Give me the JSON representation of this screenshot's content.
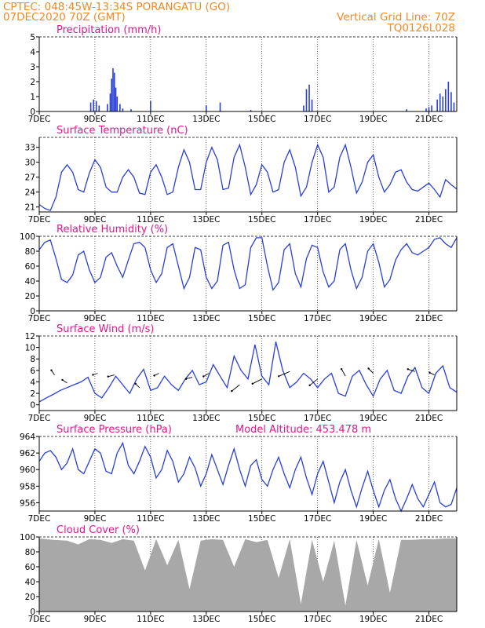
{
  "header": {
    "line1": "CPTEC:   048:45W-13:34S   PORANGATU (GO)",
    "line2": "07DEC2020 70Z (GMT)",
    "grid_note": "Vertical Grid Line: 70Z",
    "code": "TQ0126L028"
  },
  "colors": {
    "header": "#f08a24",
    "title": "#e0188c",
    "line": "#2a3fd6",
    "bar": "#2a3fd6",
    "cloud": "#a8a8a8"
  },
  "x_ticks": [
    "7DEC",
    "9DEC",
    "11DEC",
    "13DEC",
    "15DEC",
    "17DEC",
    "19DEC",
    "21DEC"
  ],
  "x_range_days": [
    0,
    15
  ],
  "panels": [
    {
      "id": "precip",
      "title": "Precipitation  (mm/h)",
      "extra": "",
      "type": "bar",
      "ylim": [
        0,
        5
      ],
      "yticks": [
        "0",
        "1",
        "2",
        "3",
        "4",
        "5"
      ]
    },
    {
      "id": "temp",
      "title": "Surface Temperature (nC)",
      "extra": "",
      "type": "line",
      "ylim": [
        20,
        35
      ],
      "yticks": [
        "21",
        "24",
        "27",
        "30",
        "33"
      ]
    },
    {
      "id": "rh",
      "title": "Relative Humidity  (%)",
      "extra": "",
      "type": "line",
      "ylim": [
        0,
        100
      ],
      "yticks": [
        "0",
        "20",
        "40",
        "60",
        "80",
        "100"
      ]
    },
    {
      "id": "wind",
      "title": "Surface Wind  (m/s)",
      "extra": "",
      "type": "line",
      "ylim": [
        -1,
        12
      ],
      "yticks": [
        "0",
        "2",
        "4",
        "6",
        "8",
        "10",
        "12"
      ]
    },
    {
      "id": "pres",
      "title": "Surface Pressure (hPa)",
      "extra": "Model Altitude: 453.478  m",
      "type": "line",
      "ylim": [
        955,
        964
      ],
      "yticks": [
        "956",
        "958",
        "960",
        "962",
        "964"
      ]
    },
    {
      "id": "cloud",
      "title": "Cloud Cover (%)",
      "extra": "",
      "type": "area",
      "ylim": [
        0,
        100
      ],
      "yticks": [
        "0",
        "20",
        "40",
        "60",
        "80",
        "100"
      ]
    }
  ],
  "chart_data": [
    {
      "type": "bar",
      "title": "Precipitation  (mm/h)",
      "ylim": [
        0,
        5
      ],
      "x": [
        1.85,
        1.95,
        2.05,
        2.15,
        2.45,
        2.55,
        2.6,
        2.65,
        2.7,
        2.75,
        2.8,
        2.9,
        3.0,
        3.3,
        4.0,
        6.0,
        6.5,
        7.6,
        9.5,
        9.6,
        9.7,
        9.8,
        13.2,
        13.9,
        14.0,
        14.1,
        14.3,
        14.4,
        14.5,
        14.6,
        14.7,
        14.8,
        14.9
      ],
      "values": [
        0.6,
        0.8,
        0.7,
        0.4,
        0.5,
        1.2,
        2.2,
        2.9,
        2.6,
        1.6,
        1.0,
        0.5,
        0.2,
        0.15,
        0.7,
        0.4,
        0.6,
        0.1,
        0.4,
        1.5,
        1.8,
        0.8,
        0.15,
        0.2,
        0.3,
        0.4,
        0.8,
        1.2,
        1.0,
        1.5,
        2.0,
        1.3,
        0.6
      ]
    },
    {
      "type": "line",
      "title": "Surface Temperature (nC)",
      "ylim": [
        20,
        35
      ],
      "x": [
        0,
        0.2,
        0.4,
        0.6,
        0.8,
        1.0,
        1.2,
        1.4,
        1.6,
        1.8,
        2.0,
        2.2,
        2.4,
        2.6,
        2.8,
        3.0,
        3.2,
        3.4,
        3.6,
        3.8,
        4.0,
        4.2,
        4.4,
        4.6,
        4.8,
        5.0,
        5.2,
        5.4,
        5.6,
        5.8,
        6.0,
        6.2,
        6.4,
        6.6,
        6.8,
        7.0,
        7.2,
        7.4,
        7.6,
        7.8,
        8.0,
        8.2,
        8.4,
        8.6,
        8.8,
        9.0,
        9.2,
        9.4,
        9.6,
        9.8,
        10.0,
        10.2,
        10.4,
        10.6,
        10.8,
        11.0,
        11.2,
        11.4,
        11.6,
        11.8,
        12.0,
        12.2,
        12.4,
        12.6,
        12.8,
        13.0,
        13.2,
        13.4,
        13.6,
        13.8,
        14.0,
        14.2,
        14.4,
        14.6,
        14.8,
        15.0
      ],
      "values": [
        21.5,
        20.7,
        20.3,
        23,
        28,
        29.5,
        28,
        24.5,
        24,
        27.8,
        30.5,
        29,
        25,
        24,
        24,
        27,
        28.5,
        27,
        23.8,
        23.5,
        28,
        29.5,
        27,
        23.5,
        24,
        29,
        32.5,
        30,
        24.5,
        24.5,
        30,
        33,
        30.5,
        24.5,
        24.8,
        31,
        33.5,
        29,
        23.5,
        25.5,
        29.5,
        28,
        24,
        24.5,
        30,
        32.5,
        29,
        23.2,
        25,
        30,
        33.5,
        31,
        24,
        25,
        31,
        33.5,
        29,
        23.8,
        26,
        30,
        31.5,
        27,
        24,
        25.5,
        28,
        28.5,
        26,
        24.5,
        24.2,
        25,
        25.8,
        24.5,
        23,
        26.5,
        25.5,
        24.6
      ]
    },
    {
      "type": "line",
      "title": "Relative Humidity  (%)",
      "ylim": [
        0,
        100
      ],
      "x": [
        0,
        0.2,
        0.4,
        0.6,
        0.8,
        1.0,
        1.2,
        1.4,
        1.6,
        1.8,
        2.0,
        2.2,
        2.4,
        2.6,
        2.8,
        3.0,
        3.2,
        3.4,
        3.6,
        3.8,
        4.0,
        4.2,
        4.4,
        4.6,
        4.8,
        5.0,
        5.2,
        5.4,
        5.6,
        5.8,
        6.0,
        6.2,
        6.4,
        6.6,
        6.8,
        7.0,
        7.2,
        7.4,
        7.6,
        7.8,
        8.0,
        8.2,
        8.4,
        8.6,
        8.8,
        9.0,
        9.2,
        9.4,
        9.6,
        9.8,
        10.0,
        10.2,
        10.4,
        10.6,
        10.8,
        11.0,
        11.2,
        11.4,
        11.6,
        11.8,
        12.0,
        12.2,
        12.4,
        12.6,
        12.8,
        13.0,
        13.2,
        13.4,
        13.6,
        13.8,
        14.0,
        14.2,
        14.4,
        14.6,
        14.8,
        15.0
      ],
      "values": [
        82,
        92,
        95,
        70,
        42,
        38,
        48,
        75,
        80,
        55,
        38,
        45,
        72,
        78,
        60,
        45,
        68,
        90,
        92,
        85,
        55,
        38,
        50,
        85,
        90,
        60,
        30,
        45,
        85,
        82,
        45,
        30,
        40,
        88,
        92,
        55,
        30,
        35,
        85,
        98,
        98,
        60,
        28,
        38,
        82,
        90,
        50,
        32,
        70,
        88,
        85,
        52,
        32,
        40,
        82,
        90,
        55,
        30,
        45,
        80,
        90,
        65,
        32,
        42,
        68,
        82,
        90,
        78,
        75,
        80,
        85,
        96,
        98,
        90,
        85,
        98
      ]
    },
    {
      "type": "line",
      "title": "Surface Wind  (m/s)",
      "ylim": [
        -1,
        12
      ],
      "x": [
        0,
        0.25,
        0.5,
        0.75,
        1.0,
        1.25,
        1.5,
        1.75,
        2.0,
        2.25,
        2.5,
        2.75,
        3.0,
        3.25,
        3.5,
        3.75,
        4.0,
        4.25,
        4.5,
        4.75,
        5.0,
        5.25,
        5.5,
        5.75,
        6.0,
        6.25,
        6.5,
        6.75,
        7.0,
        7.25,
        7.5,
        7.75,
        8.0,
        8.25,
        8.5,
        8.75,
        9.0,
        9.25,
        9.5,
        9.75,
        10.0,
        10.25,
        10.5,
        10.75,
        11.0,
        11.25,
        11.5,
        11.75,
        12.0,
        12.25,
        12.5,
        12.75,
        13.0,
        13.25,
        13.5,
        13.75,
        14.0,
        14.25,
        14.5,
        14.75,
        15.0
      ],
      "values": [
        0.5,
        1.2,
        1.8,
        2.5,
        3.0,
        3.5,
        4.0,
        4.8,
        2.0,
        1.2,
        3.0,
        5.0,
        3.5,
        2.0,
        4.5,
        6.2,
        2.5,
        3.0,
        5.0,
        3.5,
        2.5,
        4.5,
        6.0,
        3.5,
        4.0,
        7.0,
        5.0,
        3.0,
        8.5,
        6.0,
        4.5,
        10.5,
        5.0,
        3.5,
        11.0,
        6.0,
        3.0,
        4.0,
        5.5,
        4.5,
        3.0,
        4.5,
        5.5,
        2.0,
        1.5,
        5.0,
        6.0,
        3.5,
        1.5,
        4.5,
        6.0,
        2.5,
        2.0,
        5.0,
        6.5,
        3.0,
        2.0,
        5.5,
        6.8,
        3.0,
        2.2
      ]
    },
    {
      "type": "line",
      "title": "Surface Pressure (hPa)",
      "ylim": [
        955,
        964
      ],
      "x": [
        0,
        0.2,
        0.4,
        0.6,
        0.8,
        1.0,
        1.2,
        1.4,
        1.6,
        1.8,
        2.0,
        2.2,
        2.4,
        2.6,
        2.8,
        3.0,
        3.2,
        3.4,
        3.6,
        3.8,
        4.0,
        4.2,
        4.4,
        4.6,
        4.8,
        5.0,
        5.2,
        5.4,
        5.6,
        5.8,
        6.0,
        6.2,
        6.4,
        6.6,
        6.8,
        7.0,
        7.2,
        7.4,
        7.6,
        7.8,
        8.0,
        8.2,
        8.4,
        8.6,
        8.8,
        9.0,
        9.2,
        9.4,
        9.6,
        9.8,
        10.0,
        10.2,
        10.4,
        10.6,
        10.8,
        11.0,
        11.2,
        11.4,
        11.6,
        11.8,
        12.0,
        12.2,
        12.4,
        12.6,
        12.8,
        13.0,
        13.2,
        13.4,
        13.6,
        13.8,
        14.0,
        14.2,
        14.4,
        14.6,
        14.8,
        15.0
      ],
      "values": [
        961,
        962,
        962.3,
        961.5,
        960,
        960.8,
        962.5,
        960,
        959.5,
        961,
        962.5,
        962,
        959.8,
        959.5,
        962,
        963.2,
        960.5,
        959.5,
        961,
        962.8,
        961.5,
        959,
        960,
        962.3,
        961,
        958.5,
        959.5,
        961.5,
        960.2,
        958,
        959.5,
        961.8,
        960,
        958.2,
        960.5,
        962.5,
        960,
        958,
        960.5,
        961.2,
        958.8,
        958,
        960,
        961.5,
        959.5,
        957.8,
        960,
        961.5,
        959,
        957,
        959.5,
        961,
        958.5,
        956,
        958.5,
        960,
        957.5,
        955.5,
        957.8,
        959.8,
        957.5,
        955.5,
        957.5,
        958.8,
        956.5,
        955,
        956.5,
        958.2,
        956.5,
        955.5,
        957,
        958.5,
        956,
        955.5,
        955.8,
        957.8
      ]
    },
    {
      "type": "area",
      "title": "Cloud Cover (%)",
      "ylim": [
        0,
        100
      ],
      "x": [
        0,
        0.5,
        1.0,
        1.4,
        1.8,
        2.2,
        2.6,
        3.0,
        3.4,
        3.8,
        4.2,
        4.6,
        5.0,
        5.4,
        5.8,
        6.2,
        6.6,
        7.0,
        7.4,
        7.8,
        8.2,
        8.6,
        9.0,
        9.4,
        9.8,
        10.2,
        10.6,
        11.0,
        11.4,
        11.8,
        12.2,
        12.6,
        13.0,
        13.4,
        13.8,
        14.2,
        14.6,
        15.0
      ],
      "values": [
        98,
        96,
        95,
        90,
        97,
        96,
        92,
        97,
        95,
        55,
        97,
        62,
        96,
        30,
        95,
        97,
        96,
        60,
        97,
        93,
        96,
        45,
        97,
        10,
        96,
        40,
        95,
        8,
        96,
        35,
        97,
        25,
        96,
        96,
        97,
        97,
        98,
        98
      ]
    }
  ]
}
